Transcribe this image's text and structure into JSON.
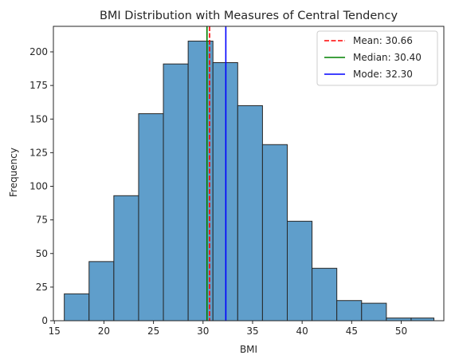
{
  "chart_data": {
    "type": "bar",
    "subtype": "histogram",
    "title": "BMI Distribution with Measures of Central Tendency",
    "xlabel": "BMI",
    "ylabel": "Frequency",
    "xlim": [
      14.9,
      54.3
    ],
    "ylim": [
      0,
      219
    ],
    "xticks": [
      15,
      20,
      25,
      30,
      35,
      40,
      45,
      50
    ],
    "yticks": [
      0,
      25,
      50,
      75,
      100,
      125,
      150,
      175,
      200
    ],
    "grid": false,
    "bar_color": "#5f9ecb",
    "bar_edge_color": "#262626",
    "bins": [
      {
        "start": 16.0,
        "end": 18.5,
        "count": 20
      },
      {
        "start": 18.5,
        "end": 21.0,
        "count": 44
      },
      {
        "start": 21.0,
        "end": 23.5,
        "count": 93
      },
      {
        "start": 23.5,
        "end": 26.0,
        "count": 154
      },
      {
        "start": 26.0,
        "end": 28.5,
        "count": 191
      },
      {
        "start": 28.5,
        "end": 31.0,
        "count": 208
      },
      {
        "start": 31.0,
        "end": 33.5,
        "count": 192
      },
      {
        "start": 33.5,
        "end": 36.0,
        "count": 160
      },
      {
        "start": 36.0,
        "end": 38.5,
        "count": 131
      },
      {
        "start": 38.5,
        "end": 41.0,
        "count": 74
      },
      {
        "start": 41.0,
        "end": 43.5,
        "count": 39
      },
      {
        "start": 43.5,
        "end": 46.0,
        "count": 15
      },
      {
        "start": 46.0,
        "end": 48.5,
        "count": 13
      },
      {
        "start": 48.5,
        "end": 51.0,
        "count": 2
      },
      {
        "start": 51.0,
        "end": 53.3,
        "count": 2
      }
    ],
    "reference_lines": [
      {
        "name": "Mean: 30.66",
        "value": 30.66,
        "color": "#ff0000",
        "style": "dashed"
      },
      {
        "name": "Median: 30.40",
        "value": 30.4,
        "color": "#008000",
        "style": "solid"
      },
      {
        "name": "Mode: 32.30",
        "value": 32.3,
        "color": "#0000ff",
        "style": "solid"
      }
    ],
    "legend_position": "top-right"
  }
}
